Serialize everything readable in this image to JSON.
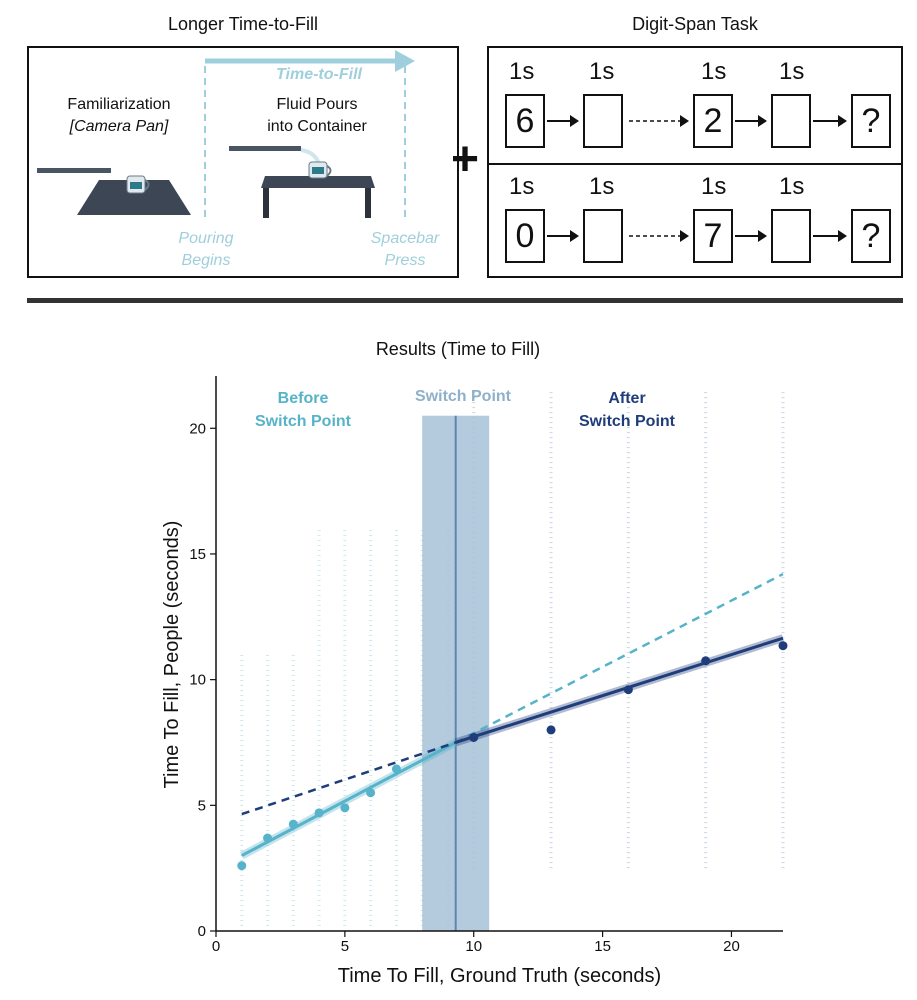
{
  "top": {
    "left_panel_title": "Longer Time-to-Fill",
    "right_panel_title": "Digit-Span Task",
    "plus_sign": "+",
    "time_to_fill_arrow_label": "Time-to-Fill",
    "familiarization_line1": "Familiarization",
    "familiarization_line2": "[Camera Pan]",
    "fluid_line1": "Fluid Pours",
    "fluid_line2": "into Container",
    "pouring_line1": "Pouring",
    "pouring_line2": "Begins",
    "spacebar_line1": "Spacebar",
    "spacebar_line2": "Press",
    "digit_rows": [
      {
        "digits": [
          "6",
          "",
          "2",
          "",
          "?"
        ],
        "secs": [
          "1s",
          "1s",
          "1s",
          "1s"
        ]
      },
      {
        "digits": [
          "0",
          "",
          "7",
          "",
          "?"
        ],
        "secs": [
          "1s",
          "1s",
          "1s",
          "1s"
        ]
      }
    ],
    "colors": {
      "cyan": "#9fcfdc",
      "table": "#3d4654"
    }
  },
  "chart_data": {
    "type": "scatter",
    "title": "Results (Time to Fill)",
    "xlabel": "Time To Fill, Ground Truth (seconds)",
    "ylabel": "Time To Fill, People (seconds)",
    "xlim": [
      0,
      22
    ],
    "ylim": [
      0,
      22
    ],
    "xticks": [
      0,
      5,
      10,
      15,
      20
    ],
    "yticks": [
      0,
      5,
      10,
      15,
      20
    ],
    "annotations": {
      "before_line1": "Before",
      "before_line2": "Switch Point",
      "switch": "Switch Point",
      "after_line1": "After",
      "after_line2": "Switch Point"
    },
    "switch_point": {
      "x": 9.3,
      "band": [
        8.0,
        10.6
      ]
    },
    "series": [
      {
        "color": "#56b3c9",
        "points": [
          [
            1,
            2.6
          ],
          [
            2,
            3.7
          ],
          [
            3,
            4.25
          ],
          [
            4,
            4.7
          ],
          [
            5,
            4.9
          ],
          [
            6,
            5.5
          ],
          [
            7,
            6.45
          ]
        ]
      },
      {
        "color": "#1f3d7a",
        "points": [
          [
            10,
            7.7
          ],
          [
            13,
            8.0
          ],
          [
            16,
            9.6
          ],
          [
            19,
            10.75
          ],
          [
            22,
            11.35
          ]
        ]
      }
    ],
    "fits": [
      {
        "role": "before-fit",
        "color": "#56b3c9",
        "from": [
          1,
          3.0
        ],
        "to": [
          9.3,
          7.5
        ],
        "dash": false
      },
      {
        "role": "before-extrapolation",
        "color": "#56b3c9",
        "from": [
          9.3,
          7.5
        ],
        "to": [
          22,
          14.2
        ],
        "dash": true
      },
      {
        "role": "after-fit",
        "color": "#1f3d7a",
        "from": [
          9.3,
          7.5
        ],
        "to": [
          22,
          11.65
        ],
        "dash": false
      },
      {
        "role": "after-extrapolation",
        "color": "#1f3d7a",
        "from": [
          1,
          4.65
        ],
        "to": [
          9.3,
          7.5
        ],
        "dash": true
      }
    ],
    "colors": {
      "before": "#56b3c9",
      "after": "#1f3d7a",
      "band": "#a7c1d7",
      "switch_line": "#5b87ad",
      "switch_text": "#8fb0c9"
    }
  }
}
